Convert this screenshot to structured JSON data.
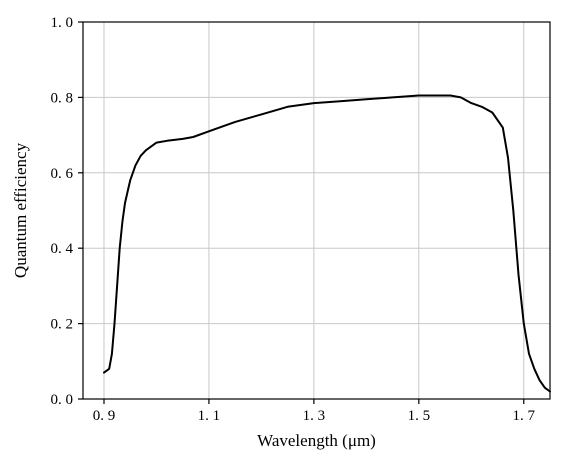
{
  "chart_data": {
    "type": "line",
    "title": "",
    "xlabel": "Wavelength (μm)",
    "ylabel": "Quantum efficiency",
    "xlim": [
      0.86,
      1.75
    ],
    "ylim": [
      0.0,
      1.0
    ],
    "xticks": [
      0.9,
      1.1,
      1.3,
      1.5,
      1.7
    ],
    "xtick_labels": [
      "0. 9",
      "1. 1",
      "1. 3",
      "1. 5",
      "1. 7"
    ],
    "yticks": [
      0.0,
      0.2,
      0.4,
      0.6,
      0.8,
      1.0
    ],
    "ytick_labels": [
      "0. 0",
      "0. 2",
      "0. 4",
      "0. 6",
      "0. 8",
      "1. 0"
    ],
    "grid": true,
    "legend": "none",
    "series": [
      {
        "name": "",
        "color": "#000000",
        "x": [
          0.9,
          0.91,
          0.915,
          0.92,
          0.925,
          0.93,
          0.935,
          0.94,
          0.95,
          0.96,
          0.97,
          0.98,
          0.99,
          1.0,
          1.02,
          1.05,
          1.07,
          1.1,
          1.15,
          1.2,
          1.25,
          1.3,
          1.35,
          1.4,
          1.45,
          1.5,
          1.53,
          1.56,
          1.58,
          1.6,
          1.62,
          1.64,
          1.66,
          1.67,
          1.68,
          1.69,
          1.7,
          1.71,
          1.72,
          1.73,
          1.74,
          1.75
        ],
        "y": [
          0.07,
          0.08,
          0.12,
          0.2,
          0.3,
          0.4,
          0.47,
          0.52,
          0.58,
          0.62,
          0.645,
          0.66,
          0.67,
          0.68,
          0.685,
          0.69,
          0.695,
          0.71,
          0.735,
          0.755,
          0.775,
          0.785,
          0.79,
          0.795,
          0.8,
          0.805,
          0.805,
          0.805,
          0.8,
          0.785,
          0.775,
          0.76,
          0.72,
          0.64,
          0.5,
          0.33,
          0.2,
          0.12,
          0.08,
          0.05,
          0.03,
          0.02
        ]
      }
    ]
  }
}
